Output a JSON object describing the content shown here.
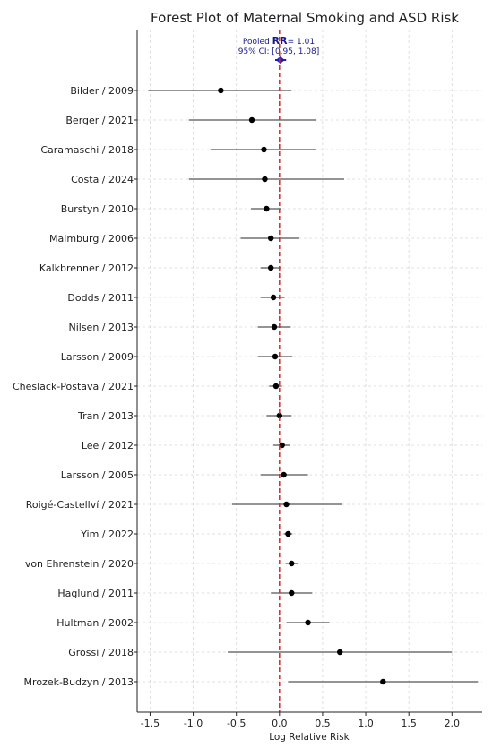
{
  "chart_data": {
    "type": "forest",
    "title": "Forest Plot of Maternal Smoking and ASD Risk",
    "xlabel": "Log Relative Risk",
    "xlim": [
      -1.65,
      2.35
    ],
    "xticks": [
      "-1.5",
      "-1.0",
      "-0.5",
      "0.0",
      "0.5",
      "1.0",
      "1.5",
      "2.0"
    ],
    "reference_line": 0.0,
    "grid": true,
    "pooled": {
      "line1_prefix": "Pooled ",
      "line1_bold": "RR",
      "line1_value": "= 1.01",
      "line2": "95% CI: [0.95, 1.08]",
      "estimate": 0.01,
      "ci_low": -0.05,
      "ci_high": 0.077
    },
    "studies": [
      {
        "label": "Bilder / 2009",
        "estimate": -0.68,
        "ci_low": -1.52,
        "ci_high": 0.14
      },
      {
        "label": "Berger / 2021",
        "estimate": -0.32,
        "ci_low": -1.05,
        "ci_high": 0.42
      },
      {
        "label": "Caramaschi / 2018",
        "estimate": -0.18,
        "ci_low": -0.8,
        "ci_high": 0.42
      },
      {
        "label": "Costa / 2024",
        "estimate": -0.17,
        "ci_low": -1.05,
        "ci_high": 0.75
      },
      {
        "label": "Burstyn / 2010",
        "estimate": -0.15,
        "ci_low": -0.33,
        "ci_high": 0.02
      },
      {
        "label": "Maimburg / 2006",
        "estimate": -0.1,
        "ci_low": -0.45,
        "ci_high": 0.23
      },
      {
        "label": "Kalkbrenner / 2012",
        "estimate": -0.1,
        "ci_low": -0.22,
        "ci_high": 0.02
      },
      {
        "label": "Dodds / 2011",
        "estimate": -0.07,
        "ci_low": -0.22,
        "ci_high": 0.06
      },
      {
        "label": "Nilsen / 2013",
        "estimate": -0.06,
        "ci_low": -0.25,
        "ci_high": 0.13
      },
      {
        "label": "Larsson / 2009",
        "estimate": -0.05,
        "ci_low": -0.25,
        "ci_high": 0.15
      },
      {
        "label": "Cheslack-Postava / 2021",
        "estimate": -0.04,
        "ci_low": -0.12,
        "ci_high": 0.03
      },
      {
        "label": "Tran / 2013",
        "estimate": 0.0,
        "ci_low": -0.15,
        "ci_high": 0.14
      },
      {
        "label": "Lee / 2012",
        "estimate": 0.03,
        "ci_low": -0.07,
        "ci_high": 0.12
      },
      {
        "label": "Larsson / 2005",
        "estimate": 0.05,
        "ci_low": -0.22,
        "ci_high": 0.33
      },
      {
        "label": "Roigé-Castellví / 2021",
        "estimate": 0.08,
        "ci_low": -0.55,
        "ci_high": 0.72
      },
      {
        "label": "Yim / 2022",
        "estimate": 0.1,
        "ci_low": 0.05,
        "ci_high": 0.15
      },
      {
        "label": "von Ehrenstein / 2020",
        "estimate": 0.14,
        "ci_low": 0.07,
        "ci_high": 0.22
      },
      {
        "label": "Haglund / 2011",
        "estimate": 0.14,
        "ci_low": -0.1,
        "ci_high": 0.38
      },
      {
        "label": "Hultman / 2002",
        "estimate": 0.33,
        "ci_low": 0.08,
        "ci_high": 0.58
      },
      {
        "label": "Grossi / 2018",
        "estimate": 0.7,
        "ci_low": -0.6,
        "ci_high": 2.0
      },
      {
        "label": "Mrozek-Budzyn / 2013",
        "estimate": 1.2,
        "ci_low": 0.1,
        "ci_high": 2.3
      }
    ],
    "colors": {
      "point": "#000000",
      "ci_line": "#555555",
      "reference_line": "#d62728",
      "pooled": "#1f1fb4",
      "grid": "#d8d8d8",
      "axis": "#222222"
    }
  }
}
